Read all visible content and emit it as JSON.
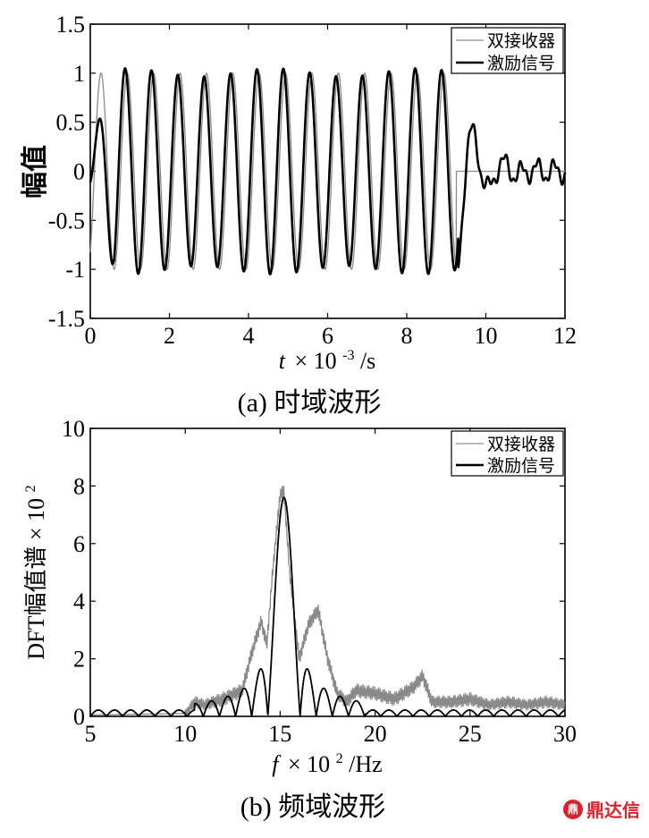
{
  "chart_data": [
    {
      "type": "line",
      "panel_caption": "(a)  时域波形",
      "ylabel": "幅值",
      "xlabel_var": "t",
      "xlabel_rest": "× 10",
      "xlabel_exp": "-3",
      "xlabel_unit": "/s",
      "xlim": [
        0,
        12
      ],
      "ylim": [
        -1.5,
        1.5
      ],
      "x_ticks": [
        "0",
        "2",
        "4",
        "6",
        "8",
        "10",
        "12"
      ],
      "y_ticks": [
        "-1.5",
        "-1",
        "-0.5",
        "0",
        "0.5",
        "1",
        "1.5"
      ],
      "legend_position": "top-right",
      "series": [
        {
          "name": "双接收器",
          "color": "#8a8a8a",
          "description_values": {
            "frequency_khz": 1.5,
            "start_ms": 0.0,
            "end_ms": 9.25,
            "amplitude": 1.0,
            "after_end": 0.0
          }
        },
        {
          "name": "激励信号",
          "color": "#000000",
          "description_values": {
            "frequency_khz": 1.5,
            "start_ms": 0.0,
            "end_ms": 9.3,
            "amplitude": 1.05,
            "ring_down_to_ms": 12,
            "ring_amplitude": 0.1
          }
        }
      ]
    },
    {
      "type": "line",
      "panel_caption": "(b)  频域波形",
      "ylabel": "DFT幅值谱 × 10",
      "ylabel_exp": "2",
      "xlabel_var": "f",
      "xlabel_rest": "× 10",
      "xlabel_exp": "2",
      "xlabel_unit": "/Hz",
      "xlim": [
        5,
        30
      ],
      "ylim": [
        0,
        10
      ],
      "x_ticks": [
        "5",
        "10",
        "15",
        "20",
        "25",
        "30"
      ],
      "y_ticks": [
        "0",
        "2",
        "4",
        "6",
        "8",
        "10"
      ],
      "legend_position": "top-right",
      "series": [
        {
          "name": "双接收器",
          "color": "#8a8a8a",
          "x": [
            5,
            10,
            10.5,
            11,
            12,
            13,
            13.5,
            14,
            14.3,
            14.6,
            15,
            15.2,
            15.5,
            16,
            16.5,
            17,
            17.5,
            18,
            18.5,
            19,
            20,
            21,
            22,
            22.5,
            23,
            24,
            25,
            26,
            27,
            28,
            29,
            30
          ],
          "y": [
            0.05,
            0.1,
            0.5,
            0.4,
            0.6,
            0.9,
            2.2,
            3.3,
            2.5,
            5.0,
            7.7,
            7.8,
            5.0,
            2.0,
            3.2,
            3.7,
            2.0,
            0.8,
            0.5,
            0.9,
            0.8,
            0.6,
            1.0,
            1.4,
            0.5,
            0.5,
            0.6,
            0.4,
            0.5,
            0.4,
            0.5,
            0.4
          ]
        },
        {
          "name": "激励信号",
          "color": "#000000",
          "main_lobe": {
            "center": 15.2,
            "peak": 7.6,
            "width": 0.85
          },
          "side_lobes": [
            0.35,
            0.45,
            0.6,
            0.85,
            1.6,
            1.7,
            0.95,
            0.6,
            0.45,
            0.35
          ]
        }
      ]
    }
  ],
  "watermark": {
    "logo_text": "鼎",
    "text": "鼎达信"
  }
}
